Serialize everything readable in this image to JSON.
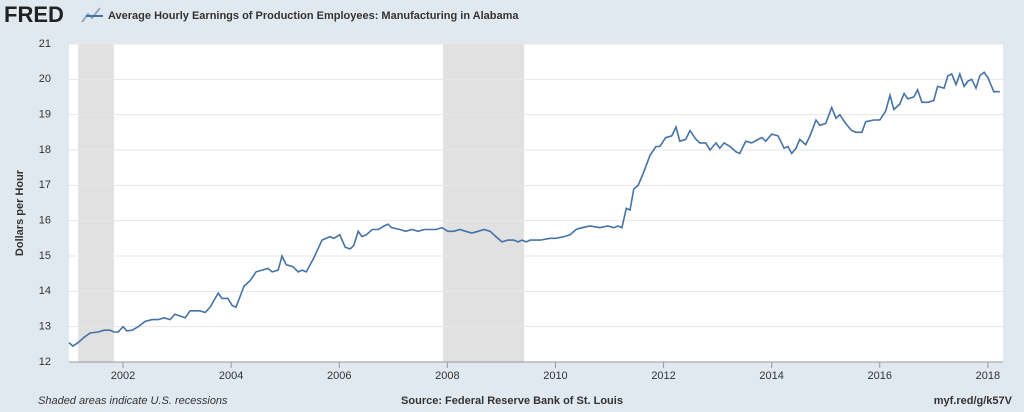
{
  "chart_data": {
    "type": "line",
    "logo": "FRED",
    "title": "Average Hourly Earnings of Production Employees: Manufacturing in Alabama",
    "y_label": "Dollars per Hour",
    "note": "Shaded areas indicate U.S. recessions",
    "source": "Source: Federal Reserve Bank of St. Louis",
    "link": "myf.red/g/k57V",
    "recessions": [
      [
        2001.17,
        2001.83
      ],
      [
        2007.92,
        2009.42
      ]
    ],
    "recession_color": "#e1e1e1",
    "x": [
      2001.0,
      2001.07,
      2001.17,
      2001.28,
      2001.39,
      2001.54,
      2001.65,
      2001.76,
      2001.83,
      2001.91,
      2002.0,
      2002.07,
      2002.17,
      2002.28,
      2002.41,
      2002.54,
      2002.65,
      2002.76,
      2002.87,
      2002.96,
      2003.15,
      2003.24,
      2003.42,
      2003.52,
      2003.61,
      2003.76,
      2003.83,
      2003.94,
      2004.02,
      2004.09,
      2004.24,
      2004.35,
      2004.46,
      2004.57,
      2004.68,
      2004.76,
      2004.87,
      2004.94,
      2005.02,
      2005.14,
      2005.24,
      2005.31,
      2005.39,
      2005.53,
      2005.68,
      2005.83,
      2005.9,
      2006.01,
      2006.11,
      2006.2,
      2006.27,
      2006.35,
      2006.42,
      2006.5,
      2006.61,
      2006.72,
      2006.83,
      2006.9,
      2006.97,
      2007.12,
      2007.23,
      2007.34,
      2007.46,
      2007.57,
      2007.68,
      2007.79,
      2007.9,
      2008.01,
      2008.12,
      2008.23,
      2008.34,
      2008.45,
      2008.57,
      2008.68,
      2008.79,
      2008.9,
      2009.01,
      2009.12,
      2009.23,
      2009.31,
      2009.38,
      2009.46,
      2009.53,
      2009.72,
      2009.9,
      2010.01,
      2010.16,
      2010.27,
      2010.38,
      2010.49,
      2010.64,
      2010.82,
      2010.97,
      2011.08,
      2011.16,
      2011.23,
      2011.31,
      2011.38,
      2011.45,
      2011.53,
      2011.64,
      2011.75,
      2011.86,
      2011.93,
      2012.04,
      2012.15,
      2012.23,
      2012.3,
      2012.41,
      2012.49,
      2012.6,
      2012.67,
      2012.78,
      2012.86,
      2012.97,
      2013.04,
      2013.12,
      2013.23,
      2013.34,
      2013.41,
      2013.52,
      2013.63,
      2013.75,
      2013.82,
      2013.89,
      2014.0,
      2014.12,
      2014.23,
      2014.3,
      2014.37,
      2014.45,
      2014.52,
      2014.63,
      2014.71,
      2014.82,
      2014.89,
      2015.0,
      2015.11,
      2015.19,
      2015.26,
      2015.37,
      2015.48,
      2015.56,
      2015.67,
      2015.74,
      2015.89,
      2016.0,
      2016.11,
      2016.19,
      2016.26,
      2016.37,
      2016.45,
      2016.52,
      2016.63,
      2016.7,
      2016.78,
      2016.89,
      2017.0,
      2017.07,
      2017.19,
      2017.26,
      2017.33,
      2017.41,
      2017.48,
      2017.56,
      2017.63,
      2017.7,
      2017.78,
      2017.85,
      2017.93,
      2018.0,
      2018.11,
      2018.22
    ],
    "series": [
      {
        "name": "Average Hourly Earnings of Production Employees: Manufacturing in Alabama",
        "color": "#4572a7",
        "values": [
          12.55,
          12.45,
          12.55,
          12.7,
          12.82,
          12.85,
          12.9,
          12.9,
          12.85,
          12.85,
          13.0,
          12.88,
          12.9,
          13.0,
          13.15,
          13.2,
          13.2,
          13.25,
          13.2,
          13.35,
          13.25,
          13.45,
          13.45,
          13.4,
          13.55,
          13.95,
          13.8,
          13.8,
          13.6,
          13.55,
          14.15,
          14.3,
          14.55,
          14.6,
          14.65,
          14.55,
          14.6,
          15.0,
          14.75,
          14.7,
          14.55,
          14.6,
          14.55,
          14.95,
          15.45,
          15.55,
          15.5,
          15.6,
          15.25,
          15.2,
          15.3,
          15.7,
          15.55,
          15.6,
          15.75,
          15.75,
          15.85,
          15.9,
          15.8,
          15.75,
          15.7,
          15.75,
          15.7,
          15.75,
          15.75,
          15.75,
          15.8,
          15.7,
          15.7,
          15.75,
          15.7,
          15.65,
          15.7,
          15.75,
          15.7,
          15.55,
          15.4,
          15.45,
          15.45,
          15.4,
          15.45,
          15.4,
          15.45,
          15.45,
          15.5,
          15.5,
          15.55,
          15.6,
          15.75,
          15.8,
          15.85,
          15.8,
          15.85,
          15.8,
          15.85,
          15.8,
          16.35,
          16.3,
          16.9,
          17.0,
          17.4,
          17.85,
          18.1,
          18.1,
          18.35,
          18.4,
          18.65,
          18.25,
          18.3,
          18.55,
          18.3,
          18.2,
          18.2,
          18.0,
          18.2,
          18.05,
          18.2,
          18.1,
          17.95,
          17.9,
          18.25,
          18.2,
          18.3,
          18.35,
          18.25,
          18.45,
          18.4,
          18.05,
          18.1,
          17.9,
          18.05,
          18.3,
          18.15,
          18.4,
          18.85,
          18.7,
          18.75,
          19.2,
          18.9,
          19.0,
          18.75,
          18.55,
          18.5,
          18.5,
          18.8,
          18.85,
          18.85,
          19.1,
          19.55,
          19.15,
          19.3,
          19.6,
          19.45,
          19.5,
          19.7,
          19.35,
          19.35,
          19.4,
          19.8,
          19.75,
          20.1,
          20.15,
          19.85,
          20.15,
          19.8,
          19.95,
          20.0,
          19.75,
          20.1,
          20.2,
          20.05,
          19.65,
          19.65
        ]
      }
    ],
    "xlim": [
      2001,
      2018.28
    ],
    "xticks": [
      2002,
      2004,
      2006,
      2008,
      2010,
      2012,
      2014,
      2016,
      2018
    ],
    "ylim": [
      12,
      21
    ],
    "yticks": [
      12,
      13,
      14,
      15,
      16,
      17,
      18,
      19,
      20,
      21
    ],
    "grid": true
  }
}
